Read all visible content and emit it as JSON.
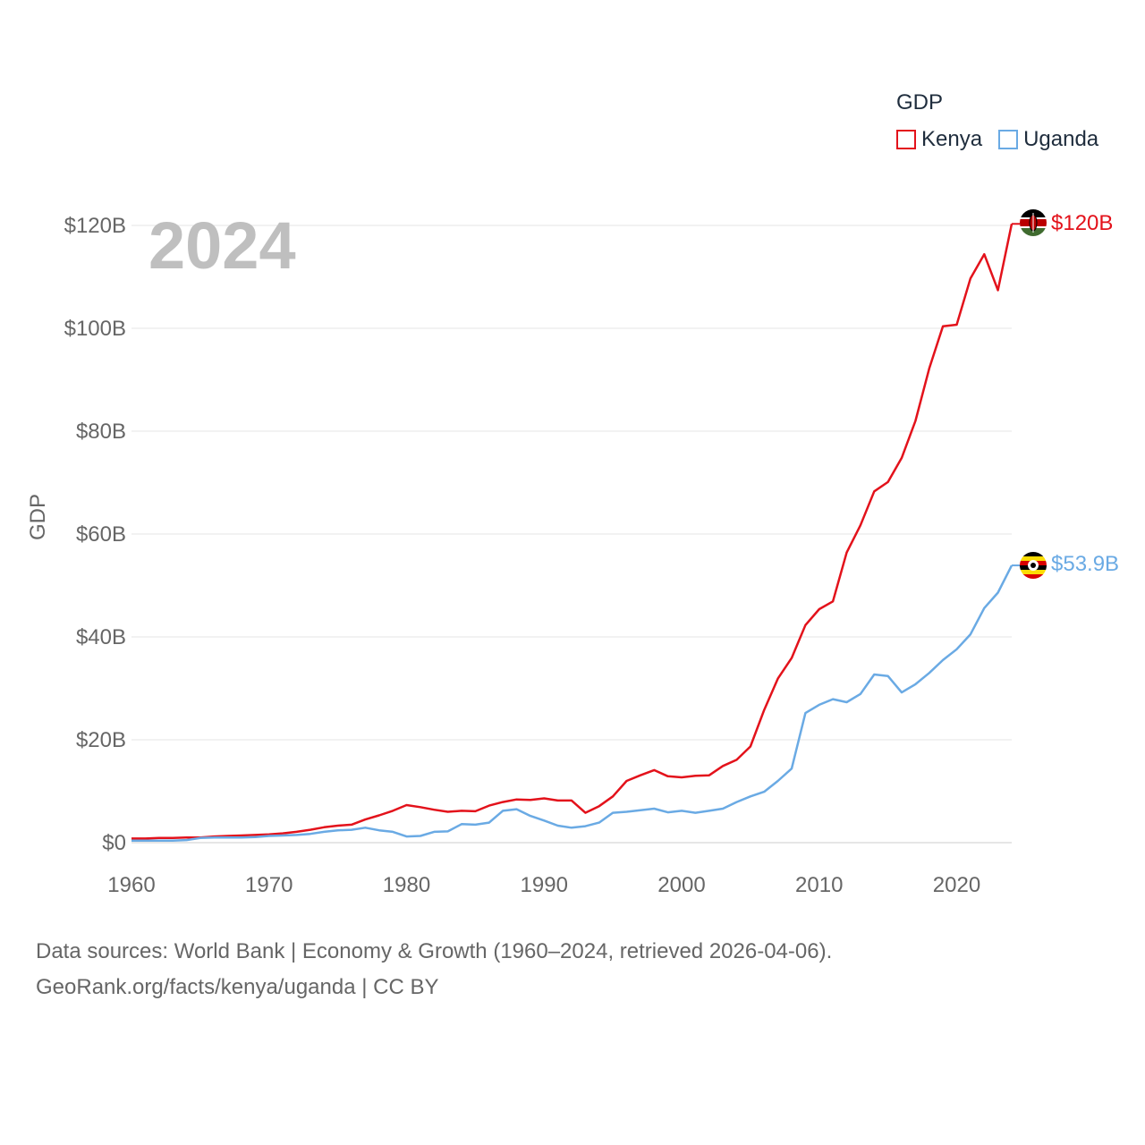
{
  "chart_data": {
    "type": "line",
    "year_label": "2024",
    "ylabel": "GDP",
    "ylim": [
      0,
      120
    ],
    "xlim": [
      1960,
      2024
    ],
    "y_ticks": [
      {
        "value": 0,
        "label": "$0"
      },
      {
        "value": 20,
        "label": "$20B"
      },
      {
        "value": 40,
        "label": "$40B"
      },
      {
        "value": 60,
        "label": "$60B"
      },
      {
        "value": 80,
        "label": "$80B"
      },
      {
        "value": 100,
        "label": "$100B"
      },
      {
        "value": 120,
        "label": "$120B"
      }
    ],
    "x_ticks": [
      {
        "value": 1960,
        "label": "1960"
      },
      {
        "value": 1970,
        "label": "1970"
      },
      {
        "value": 1980,
        "label": "1980"
      },
      {
        "value": 1990,
        "label": "1990"
      },
      {
        "value": 2000,
        "label": "2000"
      },
      {
        "value": 2010,
        "label": "2010"
      },
      {
        "value": 2020,
        "label": "2020"
      }
    ],
    "legend_title": "GDP",
    "legend_position": "top-right",
    "units": "billions of US dollars",
    "x": [
      1960,
      1961,
      1962,
      1963,
      1964,
      1965,
      1966,
      1967,
      1968,
      1969,
      1970,
      1971,
      1972,
      1973,
      1974,
      1975,
      1976,
      1977,
      1978,
      1979,
      1980,
      1981,
      1982,
      1983,
      1984,
      1985,
      1986,
      1987,
      1988,
      1989,
      1990,
      1991,
      1992,
      1993,
      1994,
      1995,
      1996,
      1997,
      1998,
      1999,
      2000,
      2001,
      2002,
      2003,
      2004,
      2005,
      2006,
      2007,
      2008,
      2009,
      2010,
      2011,
      2012,
      2013,
      2014,
      2015,
      2016,
      2017,
      2018,
      2019,
      2020,
      2021,
      2022,
      2023,
      2024
    ],
    "series": [
      {
        "name": "Kenya",
        "color": "#e3121b",
        "end_label": "$120B",
        "flag": "kenya-flag",
        "values": [
          0.8,
          0.8,
          0.9,
          0.9,
          1.0,
          1.0,
          1.2,
          1.3,
          1.4,
          1.5,
          1.6,
          1.8,
          2.1,
          2.5,
          3.0,
          3.3,
          3.5,
          4.5,
          5.3,
          6.2,
          7.3,
          6.9,
          6.4,
          6.0,
          6.2,
          6.1,
          7.2,
          7.9,
          8.4,
          8.3,
          8.6,
          8.2,
          8.2,
          5.8,
          7.1,
          9.0,
          12.0,
          13.1,
          14.1,
          12.9,
          12.7,
          13.0,
          13.1,
          14.9,
          16.1,
          18.7,
          25.8,
          31.9,
          35.9,
          42.3,
          45.4,
          46.9,
          56.4,
          61.7,
          68.3,
          70.1,
          74.8,
          82.0,
          92.2,
          100.4,
          100.7,
          109.7,
          114.4,
          107.4,
          120.3
        ]
      },
      {
        "name": "Uganda",
        "color": "#6aaae4",
        "end_label": "$53.9B",
        "flag": "uganda-flag",
        "values": [
          0.4,
          0.4,
          0.4,
          0.4,
          0.5,
          0.9,
          1.0,
          1.0,
          1.0,
          1.1,
          1.3,
          1.4,
          1.5,
          1.7,
          2.1,
          2.4,
          2.5,
          2.9,
          2.4,
          2.1,
          1.2,
          1.3,
          2.1,
          2.2,
          3.6,
          3.5,
          3.9,
          6.2,
          6.5,
          5.2,
          4.3,
          3.3,
          2.9,
          3.2,
          3.9,
          5.8,
          6.0,
          6.3,
          6.6,
          5.9,
          6.2,
          5.8,
          6.2,
          6.6,
          7.9,
          9.0,
          9.9,
          12.0,
          14.4,
          25.2,
          26.8,
          27.9,
          27.3,
          28.9,
          32.7,
          32.4,
          29.2,
          30.8,
          33.0,
          35.5,
          37.6,
          40.5,
          45.6,
          48.6,
          53.9
        ]
      }
    ]
  },
  "footer": {
    "line1": "Data sources: World Bank | Economy & Growth (1960–2024, retrieved 2026-04-06).",
    "line2": "GeoRank.org/facts/kenya/uganda | CC BY"
  }
}
